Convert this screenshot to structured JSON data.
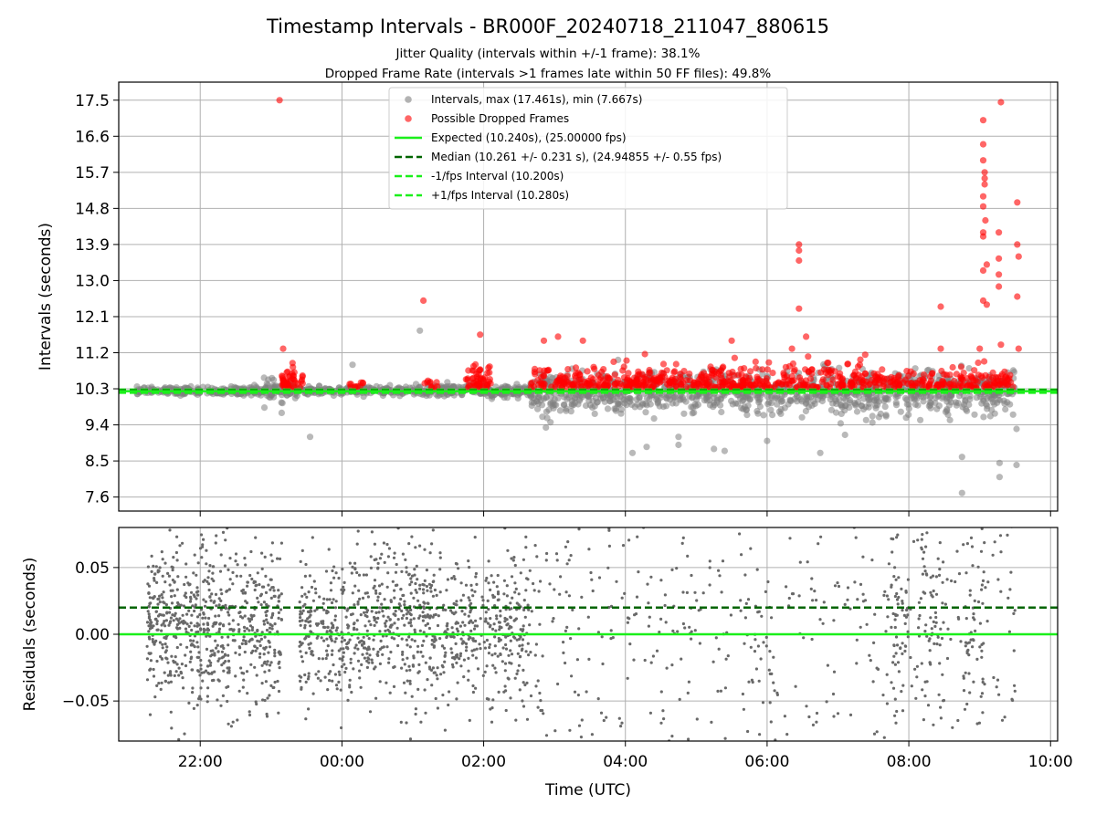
{
  "header": {
    "title": "Timestamp Intervals - BR000F_20240718_211047_880615",
    "subtitle1": "Jitter Quality (intervals within +/-1 frame): 38.1%",
    "subtitle2": "Dropped Frame Rate (intervals >1 frames late within 50 FF files): 49.8%"
  },
  "chart_data": [
    {
      "type": "scatter",
      "panel": "intervals",
      "ylabel": "Intervals (seconds)",
      "xlabel": "",
      "xlim_hours": [
        -3.15,
        10.1
      ],
      "ylim": [
        7.25,
        17.95
      ],
      "yticks": [
        7.6,
        8.5,
        9.4,
        10.3,
        11.2,
        12.1,
        13.0,
        13.9,
        14.8,
        15.7,
        16.6,
        17.5
      ],
      "ytick_labels": [
        "7.6",
        "8.5",
        "9.4",
        "10.3",
        "11.2",
        "12.1",
        "13.0",
        "13.9",
        "14.8",
        "15.7",
        "16.6",
        "17.5"
      ],
      "grid": true,
      "legend_position": "upper center",
      "legend": [
        {
          "label": "Intervals, max (17.461s), min (7.667s)",
          "kind": "marker",
          "color": "#808080"
        },
        {
          "label": "Possible Dropped Frames",
          "kind": "marker",
          "color": "#ff0000"
        },
        {
          "label": "Expected (10.240s), (25.00000 fps)",
          "kind": "solid",
          "color": "#1aef1a"
        },
        {
          "label": "Median (10.261 +/- 0.231 s), (24.94855 +/- 0.55 fps)",
          "kind": "dashed",
          "color": "#006400"
        },
        {
          "label": "-1/fps Interval (10.200s)",
          "kind": "dashed",
          "color": "#1aef1a"
        },
        {
          "label": "+1/fps Interval (10.280s)",
          "kind": "dashed",
          "color": "#1aef1a"
        }
      ],
      "reference_lines": {
        "expected": 10.24,
        "median": 10.261,
        "minus_one_fps": 10.2,
        "plus_one_fps": 10.28
      },
      "stats": {
        "max": 17.461,
        "min": 7.667
      },
      "series_colors": {
        "intervals": "#808080",
        "dropped": "#ff0000",
        "expected": "#1aef1a",
        "median": "#006400"
      },
      "outliers": {
        "gray": [
          [
            -0.85,
            9.7
          ],
          [
            -0.45,
            9.1
          ],
          [
            0.15,
            10.9
          ],
          [
            1.1,
            11.75
          ],
          [
            4.1,
            8.7
          ],
          [
            4.3,
            8.85
          ],
          [
            4.75,
            8.9
          ],
          [
            4.75,
            9.1
          ],
          [
            5.25,
            8.8
          ],
          [
            5.4,
            8.75
          ],
          [
            6.0,
            9.0
          ],
          [
            6.75,
            8.7
          ],
          [
            7.1,
            9.15
          ],
          [
            8.75,
            7.7
          ],
          [
            8.75,
            8.6
          ],
          [
            9.28,
            8.45
          ],
          [
            9.28,
            8.1
          ],
          [
            9.52,
            8.4
          ],
          [
            9.52,
            9.3
          ]
        ],
        "red": [
          [
            -0.88,
            17.5
          ],
          [
            -0.83,
            11.3
          ],
          [
            1.15,
            12.5
          ],
          [
            1.95,
            11.65
          ],
          [
            2.85,
            11.5
          ],
          [
            3.05,
            11.6
          ],
          [
            3.4,
            11.5
          ],
          [
            5.5,
            11.5
          ],
          [
            6.35,
            11.3
          ],
          [
            6.45,
            13.9
          ],
          [
            6.45,
            13.75
          ],
          [
            6.45,
            13.5
          ],
          [
            6.45,
            12.3
          ],
          [
            6.55,
            11.6
          ],
          [
            8.45,
            12.35
          ],
          [
            8.45,
            11.3
          ],
          [
            9.0,
            11.3
          ],
          [
            9.05,
            17.0
          ],
          [
            9.05,
            16.4
          ],
          [
            9.05,
            16.0
          ],
          [
            9.07,
            15.7
          ],
          [
            9.07,
            15.55
          ],
          [
            9.07,
            15.4
          ],
          [
            9.05,
            15.1
          ],
          [
            9.05,
            14.85
          ],
          [
            9.08,
            14.5
          ],
          [
            9.05,
            14.2
          ],
          [
            9.05,
            14.1
          ],
          [
            9.05,
            13.25
          ],
          [
            9.1,
            13.4
          ],
          [
            9.05,
            12.5
          ],
          [
            9.1,
            12.4
          ],
          [
            9.27,
            14.2
          ],
          [
            9.27,
            13.55
          ],
          [
            9.27,
            13.15
          ],
          [
            9.27,
            12.85
          ],
          [
            9.3,
            11.4
          ],
          [
            9.3,
            17.45
          ],
          [
            9.53,
            14.95
          ],
          [
            9.53,
            13.9
          ],
          [
            9.55,
            13.6
          ],
          [
            9.53,
            12.6
          ],
          [
            9.55,
            11.3
          ]
        ]
      }
    },
    {
      "type": "scatter",
      "panel": "residuals",
      "ylabel": "Residuals (seconds)",
      "xlabel": "Time (UTC)",
      "xlim_hours": [
        -3.15,
        10.1
      ],
      "ylim": [
        -0.08,
        0.08
      ],
      "yticks": [
        -0.05,
        0.0,
        0.05
      ],
      "ytick_labels": [
        "−0.05",
        "0.00",
        "0.05"
      ],
      "xticks_hours": [
        -2,
        0,
        2,
        4,
        6,
        8,
        10
      ],
      "xtick_labels": [
        "22:00",
        "00:00",
        "02:00",
        "04:00",
        "06:00",
        "08:00",
        "10:00"
      ],
      "grid": true,
      "reference_lines": {
        "zero": 0.0,
        "median_offset": 0.02
      },
      "series_colors": {
        "residuals": "#696969",
        "zero": "#1aef1a",
        "median": "#006400"
      }
    }
  ]
}
